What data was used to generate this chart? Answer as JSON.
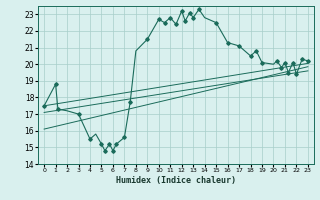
{
  "title": "",
  "xlabel": "Humidex (Indice chaleur)",
  "bg_color": "#d9f0ee",
  "grid_color": "#a8ceca",
  "line_color": "#1a6b5a",
  "xlim": [
    -0.5,
    23.5
  ],
  "ylim": [
    14,
    23.5
  ],
  "xticks": [
    0,
    1,
    2,
    3,
    4,
    5,
    6,
    7,
    8,
    9,
    10,
    11,
    12,
    13,
    14,
    15,
    16,
    17,
    18,
    19,
    20,
    21,
    22,
    23
  ],
  "yticks": [
    14,
    15,
    16,
    17,
    18,
    19,
    20,
    21,
    22,
    23
  ],
  "main_line": [
    [
      0,
      17.5
    ],
    [
      1,
      18.8
    ],
    [
      1.2,
      17.3
    ],
    [
      2,
      17.2
    ],
    [
      3,
      17.0
    ],
    [
      4,
      15.5
    ],
    [
      4.5,
      15.8
    ],
    [
      5,
      15.2
    ],
    [
      5.3,
      14.8
    ],
    [
      5.7,
      15.2
    ],
    [
      6,
      14.8
    ],
    [
      6.3,
      15.2
    ],
    [
      7,
      15.6
    ],
    [
      7.5,
      17.7
    ],
    [
      8,
      20.8
    ],
    [
      9,
      21.5
    ],
    [
      10,
      22.7
    ],
    [
      10.5,
      22.5
    ],
    [
      11,
      22.8
    ],
    [
      11.5,
      22.4
    ],
    [
      12,
      23.2
    ],
    [
      12.3,
      22.6
    ],
    [
      12.7,
      23.1
    ],
    [
      13,
      22.8
    ],
    [
      13.5,
      23.3
    ],
    [
      14,
      22.8
    ],
    [
      15,
      22.5
    ],
    [
      16,
      21.3
    ],
    [
      17,
      21.1
    ],
    [
      18,
      20.5
    ],
    [
      18.5,
      20.8
    ],
    [
      19,
      20.1
    ],
    [
      20,
      20.0
    ],
    [
      20.3,
      20.2
    ],
    [
      20.7,
      19.8
    ],
    [
      21,
      20.1
    ],
    [
      21.3,
      19.5
    ],
    [
      21.7,
      20.1
    ],
    [
      22,
      19.4
    ],
    [
      22.5,
      20.3
    ],
    [
      23,
      20.2
    ]
  ],
  "reg_line1": [
    [
      0,
      17.5
    ],
    [
      23,
      20.05
    ]
  ],
  "reg_line2": [
    [
      0,
      17.1
    ],
    [
      23,
      19.6
    ]
  ],
  "reg_line3": [
    [
      0,
      16.1
    ],
    [
      23,
      19.85
    ]
  ],
  "marker_points": [
    [
      0,
      17.5
    ],
    [
      1,
      18.8
    ],
    [
      1.2,
      17.3
    ],
    [
      3,
      17.0
    ],
    [
      4,
      15.5
    ],
    [
      5,
      15.2
    ],
    [
      5.3,
      14.8
    ],
    [
      5.7,
      15.2
    ],
    [
      6,
      14.8
    ],
    [
      6.3,
      15.2
    ],
    [
      7,
      15.6
    ],
    [
      7.5,
      17.7
    ],
    [
      9,
      21.5
    ],
    [
      10,
      22.7
    ],
    [
      10.5,
      22.5
    ],
    [
      11,
      22.8
    ],
    [
      11.5,
      22.4
    ],
    [
      12,
      23.2
    ],
    [
      12.3,
      22.6
    ],
    [
      12.7,
      23.1
    ],
    [
      13,
      22.8
    ],
    [
      13.5,
      23.3
    ],
    [
      15,
      22.5
    ],
    [
      16,
      21.3
    ],
    [
      17,
      21.1
    ],
    [
      18,
      20.5
    ],
    [
      18.5,
      20.8
    ],
    [
      19,
      20.1
    ],
    [
      20.3,
      20.2
    ],
    [
      20.7,
      19.8
    ],
    [
      21,
      20.1
    ],
    [
      21.3,
      19.5
    ],
    [
      21.7,
      20.1
    ],
    [
      22,
      19.4
    ],
    [
      22.5,
      20.3
    ],
    [
      23,
      20.2
    ]
  ]
}
